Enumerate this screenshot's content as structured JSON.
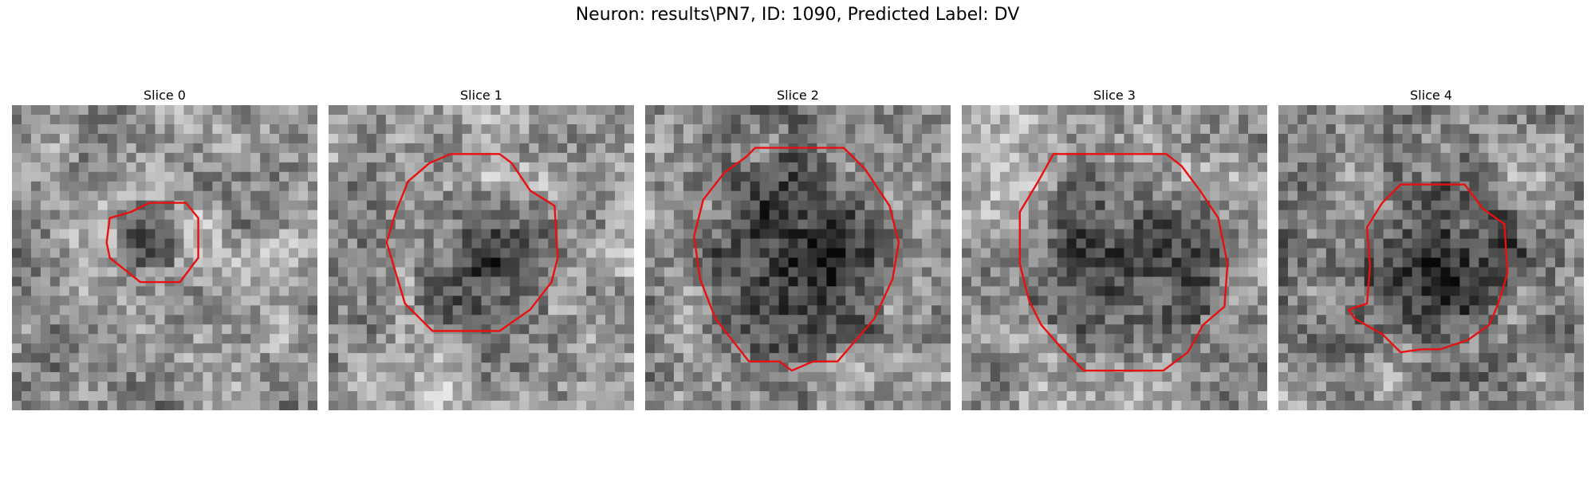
{
  "figure": {
    "title": "Neuron: results\\PN7, ID: 1090, Predicted Label: DV",
    "contour_color": "#e81010",
    "colormap": "gray",
    "panels": [
      {
        "title": "Slice 0",
        "seed": 11,
        "tone": 0.6,
        "dark_blob": [
          0.45,
          0.42,
          0.12
        ],
        "contour": [
          [
            0.45,
            0.32
          ],
          [
            0.57,
            0.32
          ],
          [
            0.61,
            0.37
          ],
          [
            0.61,
            0.5
          ],
          [
            0.55,
            0.58
          ],
          [
            0.42,
            0.58
          ],
          [
            0.32,
            0.5
          ],
          [
            0.31,
            0.45
          ],
          [
            0.32,
            0.37
          ],
          [
            0.39,
            0.35
          ]
        ]
      },
      {
        "title": "Slice 1",
        "seed": 23,
        "tone": 0.62,
        "dark_blob": [
          0.52,
          0.51,
          0.26
        ],
        "contour": [
          [
            0.4,
            0.16
          ],
          [
            0.56,
            0.16
          ],
          [
            0.6,
            0.19
          ],
          [
            0.66,
            0.28
          ],
          [
            0.74,
            0.33
          ],
          [
            0.75,
            0.5
          ],
          [
            0.73,
            0.58
          ],
          [
            0.66,
            0.67
          ],
          [
            0.56,
            0.74
          ],
          [
            0.34,
            0.74
          ],
          [
            0.25,
            0.65
          ],
          [
            0.22,
            0.55
          ],
          [
            0.19,
            0.45
          ],
          [
            0.22,
            0.35
          ],
          [
            0.26,
            0.25
          ],
          [
            0.33,
            0.19
          ]
        ]
      },
      {
        "title": "Slice 2",
        "seed": 37,
        "tone": 0.55,
        "dark_blob": [
          0.5,
          0.5,
          0.34
        ],
        "contour": [
          [
            0.33,
            0.17
          ],
          [
            0.36,
            0.14
          ],
          [
            0.65,
            0.14
          ],
          [
            0.72,
            0.21
          ],
          [
            0.8,
            0.33
          ],
          [
            0.83,
            0.45
          ],
          [
            0.81,
            0.57
          ],
          [
            0.75,
            0.7
          ],
          [
            0.63,
            0.84
          ],
          [
            0.55,
            0.84
          ],
          [
            0.48,
            0.87
          ],
          [
            0.44,
            0.84
          ],
          [
            0.34,
            0.84
          ],
          [
            0.23,
            0.7
          ],
          [
            0.18,
            0.57
          ],
          [
            0.16,
            0.43
          ],
          [
            0.19,
            0.31
          ],
          [
            0.26,
            0.22
          ]
        ]
      },
      {
        "title": "Slice 3",
        "seed": 51,
        "tone": 0.6,
        "dark_blob": [
          0.53,
          0.5,
          0.33
        ],
        "contour": [
          [
            0.3,
            0.16
          ],
          [
            0.67,
            0.16
          ],
          [
            0.72,
            0.2
          ],
          [
            0.78,
            0.28
          ],
          [
            0.84,
            0.37
          ],
          [
            0.87,
            0.52
          ],
          [
            0.86,
            0.66
          ],
          [
            0.79,
            0.72
          ],
          [
            0.74,
            0.81
          ],
          [
            0.66,
            0.87
          ],
          [
            0.4,
            0.87
          ],
          [
            0.33,
            0.8
          ],
          [
            0.26,
            0.72
          ],
          [
            0.22,
            0.64
          ],
          [
            0.19,
            0.52
          ],
          [
            0.19,
            0.35
          ],
          [
            0.25,
            0.25
          ]
        ]
      },
      {
        "title": "Slice 4",
        "seed": 67,
        "tone": 0.55,
        "dark_blob": [
          0.55,
          0.52,
          0.26
        ],
        "contour": [
          [
            0.4,
            0.26
          ],
          [
            0.61,
            0.26
          ],
          [
            0.67,
            0.34
          ],
          [
            0.74,
            0.39
          ],
          [
            0.75,
            0.55
          ],
          [
            0.72,
            0.65
          ],
          [
            0.69,
            0.72
          ],
          [
            0.62,
            0.77
          ],
          [
            0.53,
            0.8
          ],
          [
            0.47,
            0.8
          ],
          [
            0.4,
            0.81
          ],
          [
            0.34,
            0.75
          ],
          [
            0.25,
            0.7
          ],
          [
            0.23,
            0.67
          ],
          [
            0.29,
            0.65
          ],
          [
            0.3,
            0.53
          ],
          [
            0.29,
            0.4
          ],
          [
            0.34,
            0.32
          ]
        ]
      }
    ]
  }
}
